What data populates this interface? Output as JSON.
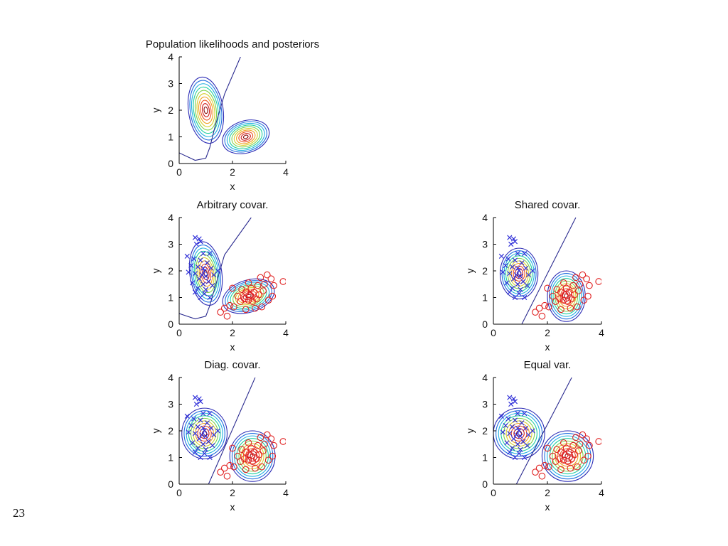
{
  "slide": {
    "page_number": "23"
  },
  "chart_data": [
    {
      "type": "scatter",
      "title": "Population likelihoods and posteriors",
      "xlabel": "x",
      "ylabel": "y",
      "xlim": [
        0,
        4
      ],
      "ylim": [
        0,
        4
      ],
      "xticks": [
        "0",
        "2",
        "4"
      ],
      "yticks": [
        "0",
        "1",
        "2",
        "3",
        "4"
      ],
      "components": [
        {
          "center": [
            1.0,
            2.0
          ],
          "radii": [
            0.65,
            1.25
          ],
          "angle_deg": 8
        },
        {
          "center": [
            2.5,
            1.0
          ],
          "radii": [
            0.9,
            0.6
          ],
          "angle_deg": 18
        }
      ],
      "boundary": [
        [
          0,
          0.4
        ],
        [
          0.6,
          0.12
        ],
        [
          1.0,
          0.2
        ],
        [
          1.15,
          0.6
        ],
        [
          1.35,
          1.4
        ],
        [
          1.7,
          2.6
        ],
        [
          2.3,
          4.0
        ]
      ],
      "markers": false
    },
    {
      "type": "scatter",
      "title": "Arbitrary covar.",
      "xlabel": "x",
      "ylabel": "y",
      "xlim": [
        0,
        4
      ],
      "ylim": [
        0,
        4
      ],
      "xticks": [
        "0",
        "2",
        "4"
      ],
      "yticks": [
        "0",
        "1",
        "2",
        "3",
        "4"
      ],
      "components": [
        {
          "center": [
            1.0,
            1.9
          ],
          "radii": [
            0.6,
            1.2
          ],
          "angle_deg": 8
        },
        {
          "center": [
            2.6,
            1.05
          ],
          "radii": [
            1.0,
            0.6
          ],
          "angle_deg": 18
        }
      ],
      "boundary": [
        [
          0,
          0.4
        ],
        [
          0.6,
          0.2
        ],
        [
          1.0,
          0.3
        ],
        [
          1.15,
          0.7
        ],
        [
          1.35,
          1.4
        ],
        [
          1.7,
          2.6
        ],
        [
          2.7,
          4.0
        ]
      ],
      "markers": true
    },
    {
      "type": "scatter",
      "title": "Shared covar.",
      "xlabel": "x",
      "ylabel": "y",
      "xlim": [
        0,
        4
      ],
      "ylim": [
        0,
        4
      ],
      "xticks": [
        "0",
        "2",
        "4"
      ],
      "yticks": [
        "0",
        "1",
        "2",
        "3",
        "4"
      ],
      "components": [
        {
          "center": [
            0.95,
            1.9
          ],
          "radii": [
            0.7,
            0.95
          ],
          "angle_deg": 0
        },
        {
          "center": [
            2.7,
            1.05
          ],
          "radii": [
            0.7,
            0.95
          ],
          "angle_deg": 0
        }
      ],
      "boundary": [
        [
          1.05,
          0
        ],
        [
          3.05,
          4.0
        ]
      ],
      "markers": true
    },
    {
      "type": "scatter",
      "title": "Diag. covar.",
      "xlabel": "x",
      "ylabel": "y",
      "xlim": [
        0,
        4
      ],
      "ylim": [
        0,
        4
      ],
      "xticks": [
        "0",
        "2",
        "4"
      ],
      "yticks": [
        "0",
        "1",
        "2",
        "3",
        "4"
      ],
      "components": [
        {
          "center": [
            0.95,
            1.9
          ],
          "radii": [
            0.85,
            0.95
          ],
          "angle_deg": 0
        },
        {
          "center": [
            2.75,
            1.05
          ],
          "radii": [
            0.85,
            0.95
          ],
          "angle_deg": 0
        }
      ],
      "boundary": [
        [
          1.1,
          0
        ],
        [
          2.85,
          4.0
        ]
      ],
      "markers": true
    },
    {
      "type": "scatter",
      "title": "Equal var.",
      "xlabel": "x",
      "ylabel": "y",
      "xlim": [
        0,
        4
      ],
      "ylim": [
        0,
        4
      ],
      "xticks": [
        "0",
        "2",
        "4"
      ],
      "yticks": [
        "0",
        "1",
        "2",
        "3",
        "4"
      ],
      "components": [
        {
          "center": [
            0.95,
            1.9
          ],
          "radii": [
            0.95,
            0.95
          ],
          "angle_deg": 0
        },
        {
          "center": [
            2.75,
            1.05
          ],
          "radii": [
            0.95,
            0.95
          ],
          "angle_deg": 0
        }
      ],
      "boundary": [
        [
          0.85,
          0
        ],
        [
          2.9,
          4.0
        ]
      ],
      "markers": true
    }
  ],
  "samples": {
    "class_blue_x": [
      [
        0.6,
        3.25
      ],
      [
        0.75,
        3.2
      ],
      [
        0.8,
        3.1
      ],
      [
        0.65,
        3.0
      ],
      [
        0.9,
        2.65
      ],
      [
        1.15,
        2.65
      ],
      [
        0.3,
        2.55
      ],
      [
        0.55,
        2.45
      ],
      [
        0.8,
        2.4
      ],
      [
        1.05,
        2.3
      ],
      [
        0.45,
        2.2
      ],
      [
        0.7,
        2.15
      ],
      [
        0.9,
        2.1
      ],
      [
        1.2,
        2.1
      ],
      [
        1.45,
        2.0
      ],
      [
        0.35,
        1.95
      ],
      [
        0.6,
        1.9
      ],
      [
        0.85,
        1.85
      ],
      [
        1.0,
        1.8
      ],
      [
        0.75,
        1.7
      ],
      [
        1.1,
        1.6
      ],
      [
        0.5,
        1.55
      ],
      [
        0.9,
        1.5
      ],
      [
        1.25,
        1.45
      ],
      [
        0.7,
        1.35
      ],
      [
        1.0,
        1.3
      ],
      [
        0.6,
        1.2
      ],
      [
        0.95,
        1.15
      ],
      [
        0.8,
        1.0
      ],
      [
        1.15,
        1.0
      ],
      [
        1.3,
        1.85
      ],
      [
        0.95,
        2.0
      ]
    ],
    "class_red_o": [
      [
        1.8,
        0.3
      ],
      [
        1.55,
        0.45
      ],
      [
        1.7,
        0.6
      ],
      [
        1.9,
        0.7
      ],
      [
        2.05,
        0.65
      ],
      [
        2.3,
        0.85
      ],
      [
        2.45,
        0.95
      ],
      [
        2.6,
        0.9
      ],
      [
        2.75,
        0.85
      ],
      [
        2.9,
        0.95
      ],
      [
        2.65,
        1.1
      ],
      [
        2.5,
        1.2
      ],
      [
        2.8,
        1.2
      ],
      [
        3.0,
        1.1
      ],
      [
        3.15,
        1.25
      ],
      [
        2.35,
        1.3
      ],
      [
        2.7,
        1.35
      ],
      [
        2.95,
        1.45
      ],
      [
        3.2,
        1.5
      ],
      [
        3.45,
        1.7
      ],
      [
        3.55,
        1.45
      ],
      [
        3.9,
        1.6
      ],
      [
        3.5,
        1.05
      ],
      [
        3.1,
        0.65
      ],
      [
        2.85,
        0.6
      ],
      [
        2.5,
        0.55
      ],
      [
        2.2,
        1.05
      ],
      [
        2.0,
        1.35
      ],
      [
        3.3,
        1.85
      ],
      [
        3.05,
        1.75
      ],
      [
        2.6,
        1.55
      ],
      [
        3.35,
        0.9
      ]
    ]
  }
}
